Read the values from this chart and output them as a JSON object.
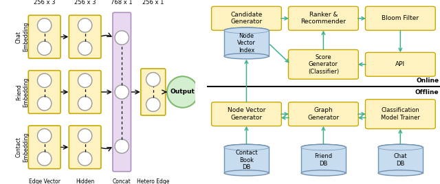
{
  "bg_color": "#ffffff",
  "left_panel": {
    "yellow_box_color": "#FEF3C0",
    "yellow_box_edge": "#C8A800",
    "purple_box_color": "#E8D8F0",
    "purple_box_edge": "#B090C0",
    "green_circle_color": "#D4EED0",
    "green_circle_edge": "#80B870",
    "node_color": "#ffffff",
    "node_edge": "#888888",
    "row_labels": [
      "Chat\nEmbedding",
      "Friend\nEmbedding",
      "Contact\nEmbedding"
    ],
    "dim_labels": [
      "256 x 3",
      "256 x 3",
      "768 x 1",
      "256 x 1"
    ],
    "output_label": "Output"
  },
  "right_panel": {
    "box_color": "#FEF3C0",
    "box_edge": "#C8A800",
    "db_color": "#C8DCF0",
    "db_edge": "#7090B0",
    "arrow_color": "#40B090"
  }
}
